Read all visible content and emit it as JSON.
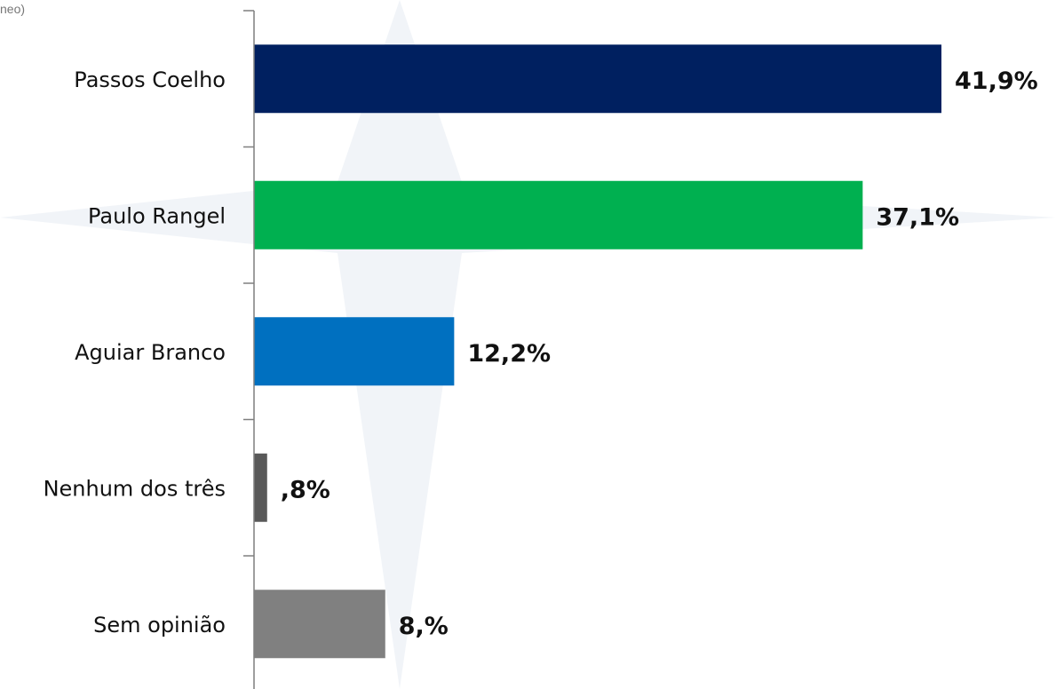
{
  "corner_note": "neo)",
  "chart_data": {
    "type": "bar",
    "orientation": "horizontal",
    "title": "",
    "xlabel": "",
    "ylabel": "",
    "xlim": [
      0,
      45.5
    ],
    "grid": false,
    "legend": "none",
    "categories": [
      "Passos Coelho",
      "Paulo Rangel",
      "Aguiar Branco",
      "Nenhum dos três",
      "Sem opinião"
    ],
    "values": [
      41.9,
      37.1,
      12.2,
      0.8,
      8.0
    ],
    "value_labels": [
      "41,9%",
      "37,1%",
      "12,2%",
      ",8%",
      "8,%"
    ],
    "colors": [
      "#002060",
      "#00b050",
      "#0070c0",
      "#595959",
      "#808080"
    ]
  }
}
